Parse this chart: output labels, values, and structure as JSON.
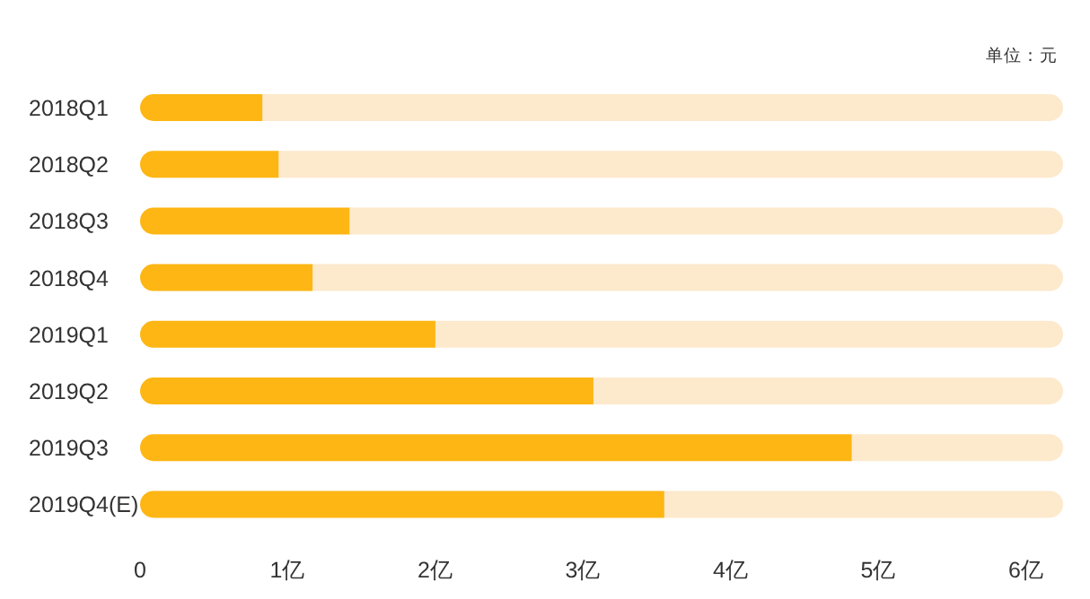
{
  "chart_data": {
    "type": "bar",
    "orientation": "horizontal",
    "stacked": true,
    "categories": [
      "2018Q1",
      "2018Q2",
      "2018Q3",
      "2018Q4",
      "2019Q1",
      "2019Q2",
      "2019Q3",
      "2019Q4(E)"
    ],
    "series": [
      {
        "color": "#fdb614",
        "values": [
          0.83,
          0.94,
          1.42,
          1.17,
          2.0,
          3.07,
          4.82,
          3.55
        ]
      },
      {
        "color": "#fde9cc",
        "values": [
          5.42,
          5.31,
          4.83,
          5.08,
          4.25,
          3.18,
          1.43,
          2.7
        ]
      }
    ],
    "xlim": [
      0,
      6.25
    ],
    "xticks": [
      0,
      {
        "value": 1,
        "label": "1亿"
      },
      {
        "value": 2,
        "label": "2亿"
      },
      {
        "value": 3,
        "label": "3亿"
      },
      {
        "value": 4,
        "label": "4亿"
      },
      {
        "value": 5,
        "label": "5亿"
      },
      {
        "value": 6,
        "label": "6亿"
      }
    ],
    "annotations": [
      "单位：元"
    ]
  }
}
